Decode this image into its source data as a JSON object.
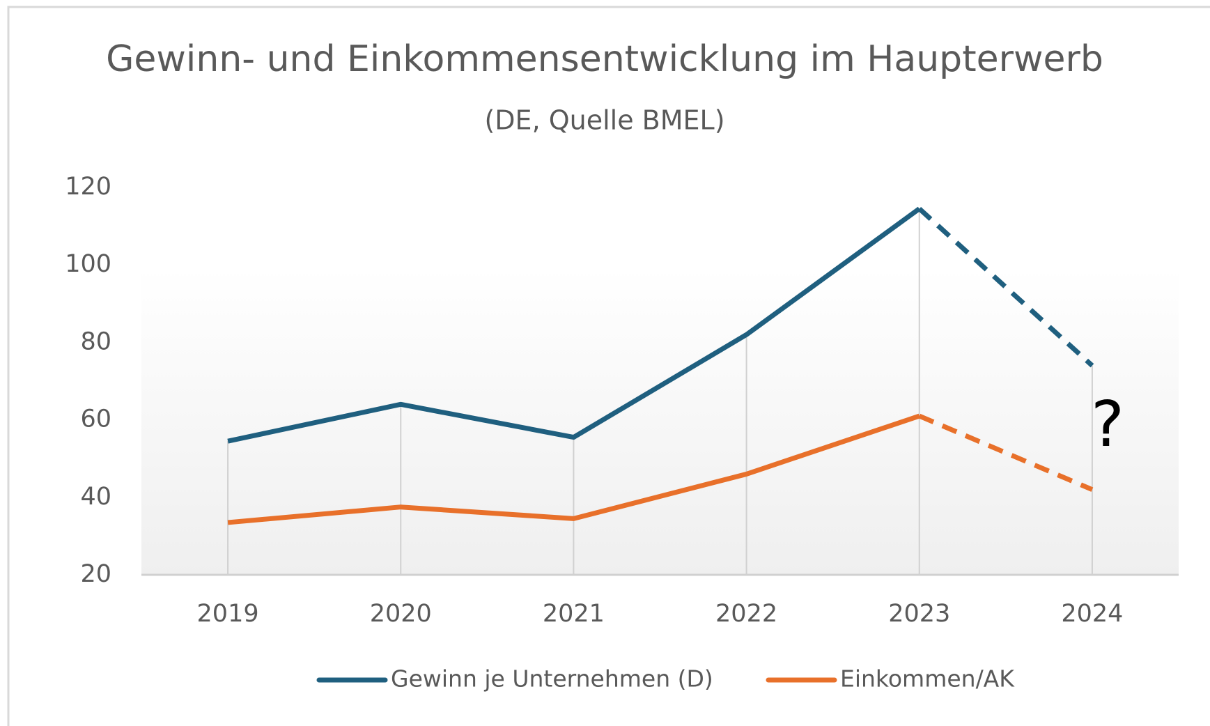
{
  "chart_data": {
    "type": "line",
    "title": "Gewinn- und Einkommensentwicklung im Haupterwerb",
    "subtitle": "(DE, Quelle BMEL)",
    "categories": [
      "2019",
      "2020",
      "2021",
      "2022",
      "2023",
      "2024"
    ],
    "series": [
      {
        "name": "Gewinn je Unternehmen (D)",
        "color": "#1f5f7f",
        "values": [
          54.5,
          64,
          55.5,
          82,
          114.5,
          74
        ],
        "segment_styles": [
          "solid",
          "solid",
          "solid",
          "solid",
          "dashed"
        ]
      },
      {
        "name": "Einkommen/AK",
        "color": "#e8702a",
        "values": [
          33.5,
          37.5,
          34.5,
          46,
          61,
          42
        ],
        "segment_styles": [
          "solid",
          "solid",
          "solid",
          "solid",
          "dashed"
        ]
      }
    ],
    "ylim": [
      20,
      120
    ],
    "yticks": [
      20,
      40,
      60,
      80,
      100,
      120
    ],
    "drop_lines": true,
    "legend": "bottom",
    "annotations": [
      "?"
    ]
  }
}
